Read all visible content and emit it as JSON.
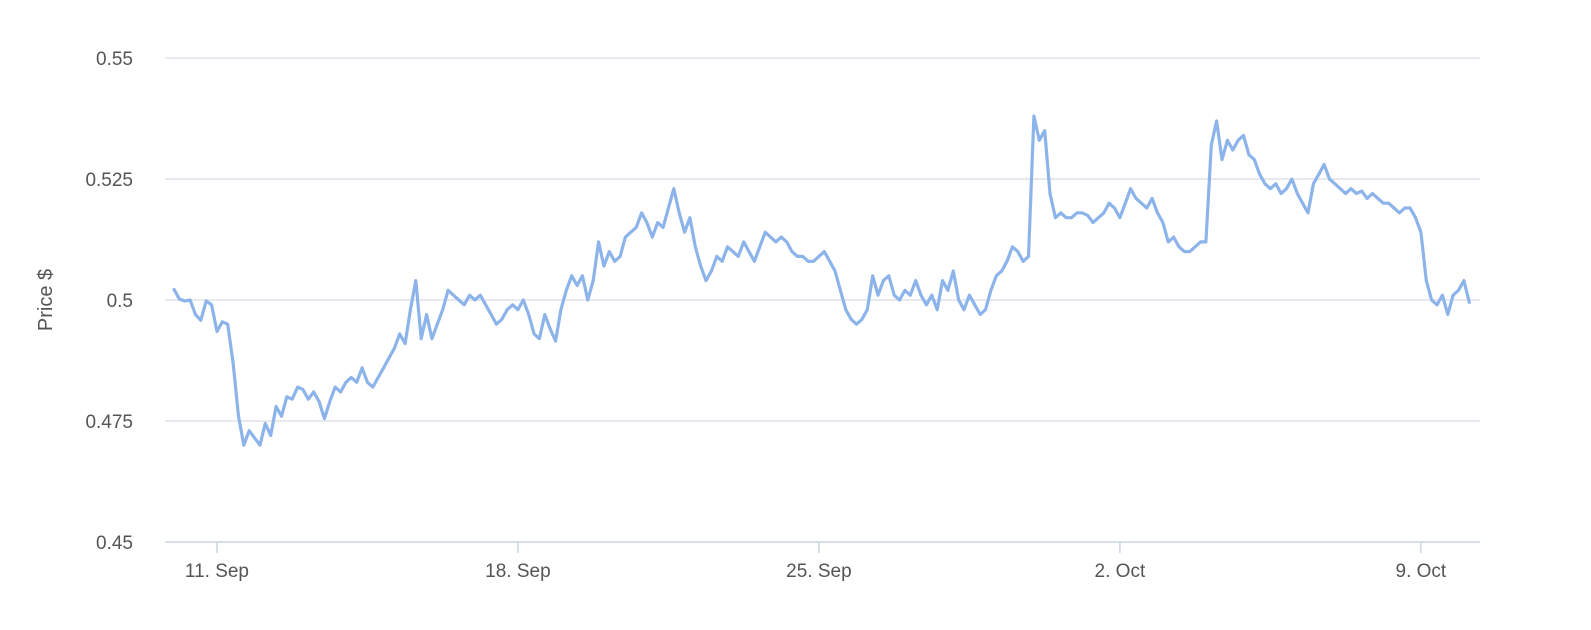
{
  "chart_data": {
    "type": "line",
    "title": "",
    "xlabel": "",
    "ylabel": "Price $",
    "x_tick_labels": [
      "11. Sep",
      "18. Sep",
      "25. Sep",
      "2. Oct",
      "9. Oct"
    ],
    "x_ticks": [
      "2023-09-11",
      "2023-09-18",
      "2023-09-25",
      "2023-10-02",
      "2023-10-09"
    ],
    "xlim": [
      "2023-09-09 19:00",
      "2023-10-10 09:00"
    ],
    "y_ticks": [
      0.45,
      0.475,
      0.5,
      0.525,
      0.55
    ],
    "y_tick_labels": [
      "0.45",
      "0.475",
      "0.5",
      "0.525",
      "0.55"
    ],
    "ylim": [
      0.45,
      0.55
    ],
    "grid": true,
    "legend": "none",
    "colors": {
      "line": "#8cb4ea"
    },
    "series": [
      {
        "x": [
          "2023-09-10 00:00",
          "2023-09-10 03:00",
          "2023-09-10 06:00",
          "2023-09-10 09:00",
          "2023-09-10 12:00",
          "2023-09-10 15:00",
          "2023-09-10 18:00",
          "2023-09-10 21:00",
          "2023-09-11 00:00",
          "2023-09-11 03:00",
          "2023-09-11 06:00",
          "2023-09-11 09:00",
          "2023-09-11 12:00",
          "2023-09-11 15:00",
          "2023-09-11 18:00",
          "2023-09-11 21:00",
          "2023-09-12 00:00",
          "2023-09-12 03:00",
          "2023-09-12 06:00",
          "2023-09-12 09:00",
          "2023-09-12 12:00",
          "2023-09-12 15:00",
          "2023-09-12 18:00",
          "2023-09-12 21:00",
          "2023-09-13 00:00",
          "2023-09-13 03:00",
          "2023-09-13 06:00",
          "2023-09-13 09:00",
          "2023-09-13 12:00",
          "2023-09-13 15:00",
          "2023-09-13 18:00",
          "2023-09-13 21:00",
          "2023-09-14 00:00",
          "2023-09-14 03:00",
          "2023-09-14 06:00",
          "2023-09-14 09:00",
          "2023-09-14 12:00",
          "2023-09-14 15:00",
          "2023-09-14 18:00",
          "2023-09-14 21:00",
          "2023-09-15 00:00",
          "2023-09-15 03:00",
          "2023-09-15 06:00",
          "2023-09-15 09:00",
          "2023-09-15 12:00",
          "2023-09-15 15:00",
          "2023-09-15 18:00",
          "2023-09-15 21:00",
          "2023-09-16 00:00",
          "2023-09-16 03:00",
          "2023-09-16 06:00",
          "2023-09-16 09:00",
          "2023-09-16 12:00",
          "2023-09-16 15:00",
          "2023-09-16 18:00",
          "2023-09-16 21:00",
          "2023-09-17 00:00",
          "2023-09-17 03:00",
          "2023-09-17 06:00",
          "2023-09-17 09:00",
          "2023-09-17 12:00",
          "2023-09-17 15:00",
          "2023-09-17 18:00",
          "2023-09-17 21:00",
          "2023-09-18 00:00",
          "2023-09-18 03:00",
          "2023-09-18 06:00",
          "2023-09-18 09:00",
          "2023-09-18 12:00",
          "2023-09-18 15:00",
          "2023-09-18 18:00",
          "2023-09-18 21:00",
          "2023-09-19 00:00",
          "2023-09-19 03:00",
          "2023-09-19 06:00",
          "2023-09-19 09:00",
          "2023-09-19 12:00",
          "2023-09-19 15:00",
          "2023-09-19 18:00",
          "2023-09-19 21:00",
          "2023-09-20 00:00",
          "2023-09-20 03:00",
          "2023-09-20 06:00",
          "2023-09-20 09:00",
          "2023-09-20 12:00",
          "2023-09-20 15:00",
          "2023-09-20 18:00",
          "2023-09-20 21:00",
          "2023-09-21 00:00",
          "2023-09-21 03:00",
          "2023-09-21 06:00",
          "2023-09-21 09:00",
          "2023-09-21 12:00",
          "2023-09-21 15:00",
          "2023-09-21 18:00",
          "2023-09-21 21:00",
          "2023-09-22 00:00",
          "2023-09-22 03:00",
          "2023-09-22 06:00",
          "2023-09-22 09:00",
          "2023-09-22 12:00",
          "2023-09-22 15:00",
          "2023-09-22 18:00",
          "2023-09-22 21:00",
          "2023-09-23 00:00",
          "2023-09-23 03:00",
          "2023-09-23 06:00",
          "2023-09-23 09:00",
          "2023-09-23 12:00",
          "2023-09-23 15:00",
          "2023-09-23 18:00",
          "2023-09-23 21:00",
          "2023-09-24 00:00",
          "2023-09-24 03:00",
          "2023-09-24 06:00",
          "2023-09-24 09:00",
          "2023-09-24 12:00",
          "2023-09-24 15:00",
          "2023-09-24 18:00",
          "2023-09-24 21:00",
          "2023-09-25 00:00",
          "2023-09-25 03:00",
          "2023-09-25 06:00",
          "2023-09-25 09:00",
          "2023-09-25 12:00",
          "2023-09-25 15:00",
          "2023-09-25 18:00",
          "2023-09-25 21:00",
          "2023-09-26 00:00",
          "2023-09-26 03:00",
          "2023-09-26 06:00",
          "2023-09-26 09:00",
          "2023-09-26 12:00",
          "2023-09-26 15:00",
          "2023-09-26 18:00",
          "2023-09-26 21:00",
          "2023-09-27 00:00",
          "2023-09-27 03:00",
          "2023-09-27 06:00",
          "2023-09-27 09:00",
          "2023-09-27 12:00",
          "2023-09-27 15:00",
          "2023-09-27 18:00",
          "2023-09-27 21:00",
          "2023-09-28 00:00",
          "2023-09-28 03:00",
          "2023-09-28 06:00",
          "2023-09-28 09:00",
          "2023-09-28 12:00",
          "2023-09-28 15:00",
          "2023-09-28 18:00",
          "2023-09-28 21:00",
          "2023-09-29 00:00",
          "2023-09-29 03:00",
          "2023-09-29 06:00",
          "2023-09-29 09:00",
          "2023-09-29 12:00",
          "2023-09-29 15:00",
          "2023-09-29 18:00",
          "2023-09-29 21:00",
          "2023-09-30 00:00",
          "2023-09-30 03:00",
          "2023-09-30 06:00",
          "2023-09-30 09:00",
          "2023-09-30 12:00",
          "2023-09-30 15:00",
          "2023-09-30 18:00",
          "2023-09-30 21:00",
          "2023-10-01 00:00",
          "2023-10-01 03:00",
          "2023-10-01 06:00",
          "2023-10-01 09:00",
          "2023-10-01 12:00",
          "2023-10-01 15:00",
          "2023-10-01 18:00",
          "2023-10-01 21:00",
          "2023-10-02 00:00",
          "2023-10-02 03:00",
          "2023-10-02 06:00",
          "2023-10-02 09:00",
          "2023-10-02 12:00",
          "2023-10-02 15:00",
          "2023-10-02 18:00",
          "2023-10-02 21:00",
          "2023-10-03 00:00",
          "2023-10-03 03:00",
          "2023-10-03 06:00",
          "2023-10-03 09:00",
          "2023-10-03 12:00",
          "2023-10-03 15:00",
          "2023-10-03 18:00",
          "2023-10-03 21:00",
          "2023-10-04 00:00",
          "2023-10-04 03:00",
          "2023-10-04 06:00",
          "2023-10-04 09:00",
          "2023-10-04 12:00",
          "2023-10-04 15:00",
          "2023-10-04 18:00",
          "2023-10-04 21:00",
          "2023-10-05 00:00",
          "2023-10-05 03:00",
          "2023-10-05 06:00",
          "2023-10-05 09:00",
          "2023-10-05 12:00",
          "2023-10-05 15:00",
          "2023-10-05 18:00",
          "2023-10-05 21:00",
          "2023-10-06 00:00",
          "2023-10-06 03:00",
          "2023-10-06 06:00",
          "2023-10-06 09:00",
          "2023-10-06 12:00",
          "2023-10-06 15:00",
          "2023-10-06 18:00",
          "2023-10-06 21:00",
          "2023-10-07 00:00",
          "2023-10-07 03:00",
          "2023-10-07 06:00",
          "2023-10-07 09:00",
          "2023-10-07 12:00",
          "2023-10-07 15:00",
          "2023-10-07 18:00",
          "2023-10-07 21:00",
          "2023-10-08 00:00",
          "2023-10-08 03:00",
          "2023-10-08 06:00",
          "2023-10-08 09:00",
          "2023-10-08 12:00",
          "2023-10-08 15:00",
          "2023-10-08 18:00",
          "2023-10-08 21:00",
          "2023-10-09 00:00",
          "2023-10-09 03:00",
          "2023-10-09 06:00",
          "2023-10-09 09:00",
          "2023-10-09 12:00",
          "2023-10-09 15:00",
          "2023-10-09 18:00",
          "2023-10-09 21:00",
          "2023-10-10 00:00",
          "2023-10-10 03:00"
        ],
        "y": [
          0.5022,
          0.5002,
          0.4998,
          0.5,
          0.497,
          0.4958,
          0.4998,
          0.499,
          0.4935,
          0.4955,
          0.495,
          0.487,
          0.476,
          0.47,
          0.473,
          0.4715,
          0.47,
          0.4745,
          0.472,
          0.478,
          0.476,
          0.48,
          0.4795,
          0.482,
          0.4815,
          0.4795,
          0.481,
          0.479,
          0.4755,
          0.479,
          0.482,
          0.481,
          0.483,
          0.484,
          0.483,
          0.486,
          0.483,
          0.482,
          0.484,
          0.486,
          0.488,
          0.49,
          0.493,
          0.491,
          0.498,
          0.504,
          0.492,
          0.497,
          0.492,
          0.495,
          0.498,
          0.502,
          0.501,
          0.5,
          0.499,
          0.501,
          0.5,
          0.501,
          0.499,
          0.497,
          0.495,
          0.496,
          0.498,
          0.499,
          0.498,
          0.5,
          0.497,
          0.493,
          0.492,
          0.497,
          0.494,
          0.4915,
          0.498,
          0.502,
          0.505,
          0.503,
          0.505,
          0.5,
          0.504,
          0.512,
          0.507,
          0.51,
          0.508,
          0.509,
          0.513,
          0.514,
          0.515,
          0.518,
          0.516,
          0.513,
          0.516,
          0.515,
          0.519,
          0.523,
          0.518,
          0.514,
          0.517,
          0.511,
          0.507,
          0.504,
          0.506,
          0.509,
          0.508,
          0.511,
          0.51,
          0.509,
          0.512,
          0.51,
          0.508,
          0.511,
          0.514,
          0.513,
          0.512,
          0.513,
          0.512,
          0.51,
          0.509,
          0.509,
          0.508,
          0.508,
          0.509,
          0.51,
          0.508,
          0.506,
          0.502,
          0.498,
          0.496,
          0.495,
          0.496,
          0.498,
          0.505,
          0.501,
          0.504,
          0.505,
          0.501,
          0.5,
          0.502,
          0.501,
          0.504,
          0.501,
          0.499,
          0.501,
          0.498,
          0.504,
          0.502,
          0.506,
          0.5,
          0.498,
          0.501,
          0.499,
          0.497,
          0.498,
          0.502,
          0.505,
          0.506,
          0.508,
          0.511,
          0.51,
          0.508,
          0.509,
          0.538,
          0.533,
          0.535,
          0.522,
          0.517,
          0.518,
          0.517,
          0.517,
          0.518,
          0.518,
          0.5175,
          0.516,
          0.517,
          0.518,
          0.52,
          0.519,
          0.517,
          0.52,
          0.523,
          0.521,
          0.52,
          0.519,
          0.521,
          0.518,
          0.516,
          0.512,
          0.513,
          0.511,
          0.51,
          0.51,
          0.511,
          0.512,
          0.512,
          0.532,
          0.537,
          0.529,
          0.533,
          0.531,
          0.533,
          0.534,
          0.53,
          0.529,
          0.526,
          0.524,
          0.523,
          0.524,
          0.522,
          0.523,
          0.525,
          0.522,
          0.52,
          0.518,
          0.524,
          0.526,
          0.528,
          0.525,
          0.524,
          0.523,
          0.522,
          0.523,
          0.522,
          0.5225,
          0.521,
          0.522,
          0.521,
          0.52,
          0.52,
          0.519,
          0.518,
          0.519,
          0.519,
          0.517,
          0.514,
          0.504,
          0.5,
          0.499,
          0.501,
          0.497,
          0.501,
          0.502,
          0.504,
          0.4995
        ]
      }
    ]
  }
}
